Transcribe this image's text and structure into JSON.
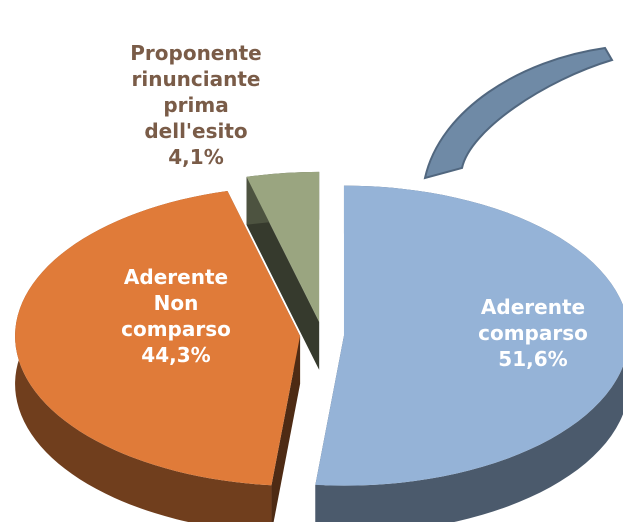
{
  "chart_data": {
    "type": "pie",
    "categories": [
      "Aderente comparso",
      "Aderente Non comparso",
      "Proponente rinunciante prima dell'esito"
    ],
    "values": [
      51.6,
      44.3,
      4.1
    ],
    "value_labels": [
      "51,6%",
      "44,3%",
      "4,1%"
    ],
    "colors": [
      "#95b3d7",
      "#e07b39",
      "#9aa580"
    ],
    "label_colors": [
      "#ffffff",
      "#ffffff",
      "#7a5c48"
    ]
  }
}
